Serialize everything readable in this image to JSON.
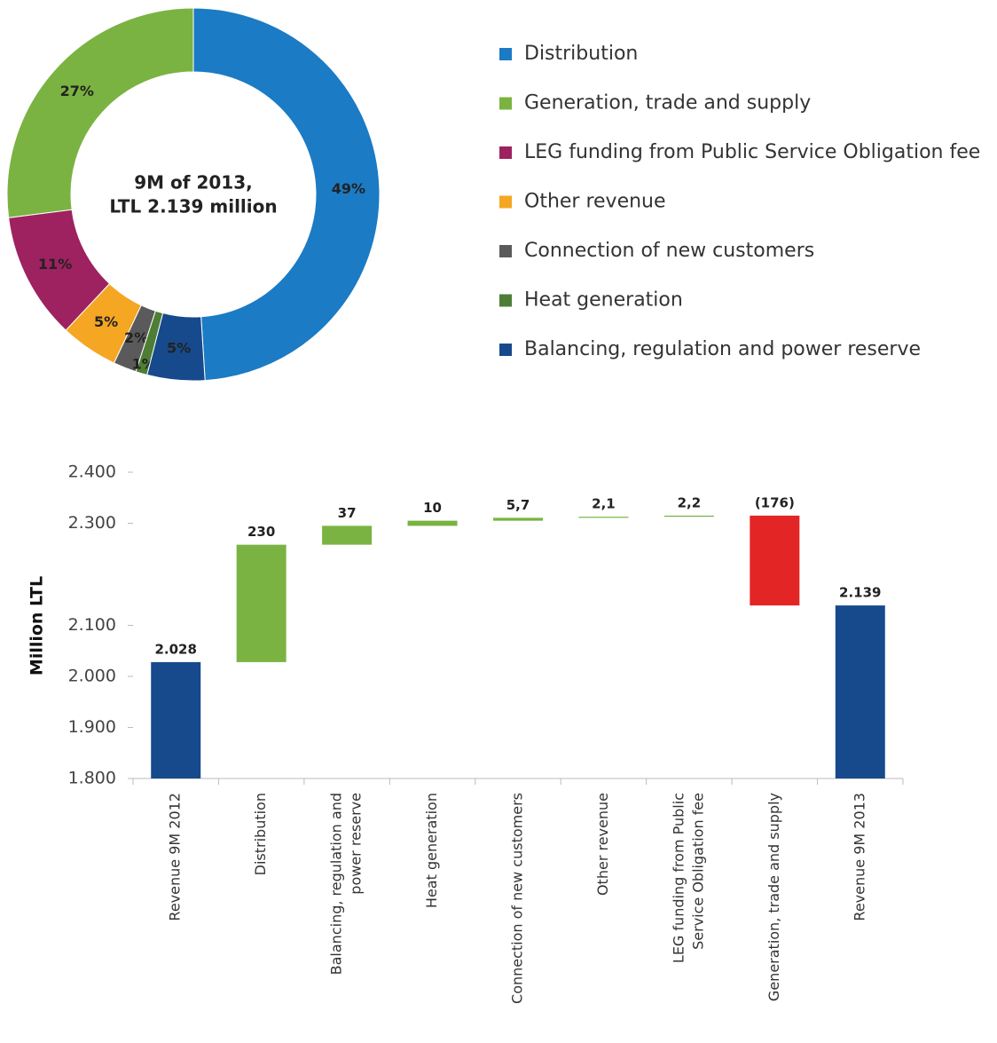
{
  "chart_data": [
    {
      "type": "donut",
      "center_text": [
        "9M of 2013,",
        "LTL 2.139 million"
      ],
      "categories": [
        "Distribution",
        "Generation, trade and supply",
        "LEG funding from Public Service Obligation fee",
        "Other revenue",
        "Connection of new customers",
        "Heat generation",
        "Balancing, regulation and power reserve"
      ],
      "values": [
        49,
        27,
        11,
        5,
        2,
        1,
        5
      ],
      "value_labels": [
        "49%",
        "27%",
        "11%",
        "5%",
        "2%",
        "1%",
        "5%"
      ],
      "colors": [
        "#1b7bc4",
        "#7ab342",
        "#9e2160",
        "#f5a623",
        "#5a5a5a",
        "#4e7e35",
        "#174a8c"
      ]
    },
    {
      "type": "waterfall",
      "ylabel": "Million LTL",
      "categories": [
        [
          "Revenue 9M 2012"
        ],
        [
          "Distribution"
        ],
        [
          "Balancing, regulation and",
          "power reserve"
        ],
        [
          "Heat generation"
        ],
        [
          "Connection of new customers"
        ],
        [
          "Other revenue"
        ],
        [
          "LEG funding from Public",
          "Service Obligation fee"
        ],
        [
          "Generation, trade and supply"
        ],
        [
          "Revenue 9M 2013"
        ]
      ],
      "values": [
        2028,
        230,
        37,
        10,
        5.7,
        2.1,
        2.2,
        -176,
        2139
      ],
      "value_labels": [
        "2.028",
        "230",
        "37",
        "10",
        "5,7",
        "2,1",
        "2,2",
        "(176)",
        "2.139"
      ],
      "colors": [
        "#174a8c",
        "#7ab342",
        "#7ab342",
        "#7ab342",
        "#7ab342",
        "#7ab342",
        "#7ab342",
        "#e42526",
        "#174a8c"
      ],
      "ylim": [
        1800,
        2400
      ],
      "yticks": [
        {
          "value": 1800,
          "label": "1.800"
        },
        {
          "value": 1900,
          "label": "1.900"
        },
        {
          "value": 2000,
          "label": "2.000"
        },
        {
          "value": 2100,
          "label": "2.100"
        },
        {
          "value": 2300,
          "label": "2.300"
        },
        {
          "value": 2400,
          "label": "2.400"
        }
      ]
    }
  ]
}
